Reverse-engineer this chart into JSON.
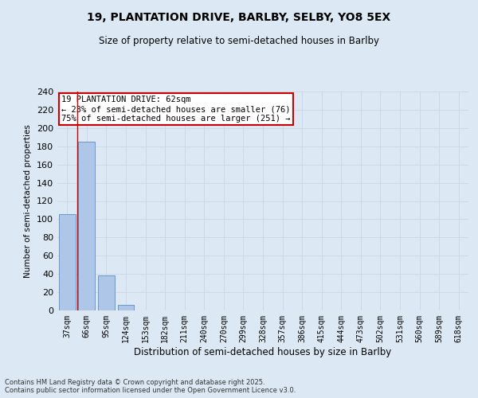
{
  "title": "19, PLANTATION DRIVE, BARLBY, SELBY, YO8 5EX",
  "subtitle": "Size of property relative to semi-detached houses in Barlby",
  "xlabel": "Distribution of semi-detached houses by size in Barlby",
  "ylabel": "Number of semi-detached properties",
  "categories": [
    "37sqm",
    "66sqm",
    "95sqm",
    "124sqm",
    "153sqm",
    "182sqm",
    "211sqm",
    "240sqm",
    "270sqm",
    "299sqm",
    "328sqm",
    "357sqm",
    "386sqm",
    "415sqm",
    "444sqm",
    "473sqm",
    "502sqm",
    "531sqm",
    "560sqm",
    "589sqm",
    "618sqm"
  ],
  "values": [
    106,
    185,
    38,
    6,
    0,
    0,
    0,
    0,
    0,
    0,
    0,
    0,
    0,
    0,
    0,
    0,
    0,
    0,
    0,
    0,
    0
  ],
  "bar_color": "#aec6e8",
  "bar_edge_color": "#5a8fc4",
  "grid_color": "#c8d8e8",
  "background_color": "#dce9f5",
  "vline_x": 0.5,
  "vline_color": "#cc0000",
  "annotation_title": "19 PLANTATION DRIVE: 62sqm",
  "annotation_line1": "← 23% of semi-detached houses are smaller (76)",
  "annotation_line2": "75% of semi-detached houses are larger (251) →",
  "annotation_box_color": "#ffffff",
  "annotation_edge_color": "#cc0000",
  "ylim": [
    0,
    240
  ],
  "yticks": [
    0,
    20,
    40,
    60,
    80,
    100,
    120,
    140,
    160,
    180,
    200,
    220,
    240
  ],
  "footnote1": "Contains HM Land Registry data © Crown copyright and database right 2025.",
  "footnote2": "Contains public sector information licensed under the Open Government Licence v3.0."
}
